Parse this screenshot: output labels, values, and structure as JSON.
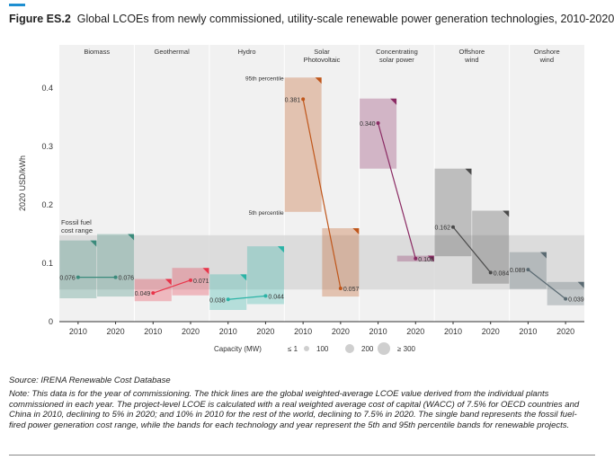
{
  "header": {
    "figure_label": "Figure ES.2",
    "title": "Global LCOEs from newly commissioned, utility-scale renewable power generation technologies, 2010-2020"
  },
  "footer": {
    "source": "Source: IRENA Renewable Cost Database",
    "note": "Note: This data is for the year of commissioning. The thick lines are the global weighted-average LCOE value derived from the individual plants commissioned in each year. The project-level LCOE is calculated with a real weighted average cost of capital (WACC) of 7.5% for OECD countries and China in 2010, declining to 5% in 2020; and 10% in 2010 for the rest of the world, declining to 7.5% in 2020. The single band represents the fossil fuel-fired power generation cost range, while the bands for each technology and year represent the 5th and 95th percentile bands for renewable projects."
  },
  "chart_data": {
    "type": "range_dot",
    "ylabel": "2020 USD/kWh",
    "ylim": [
      0,
      0.45
    ],
    "yticks": [
      0,
      0.1,
      0.2,
      0.3,
      0.4
    ],
    "ytick_labels": [
      "0",
      "0.1",
      "0.2",
      "0.3",
      "0.4"
    ],
    "years": [
      "2010",
      "2020"
    ],
    "fossil_band": {
      "label": "Fossil fuel cost range",
      "low": 0.055,
      "high": 0.148
    },
    "percentile_labels": {
      "p95": "95th percentile",
      "p5": "5th percentile"
    },
    "capacity_legend": {
      "title": "Capacity (MW)",
      "items": [
        "≤ 1",
        "100",
        "200",
        "≥ 300"
      ]
    },
    "technologies": [
      {
        "name": "Biomass",
        "color": "#3a8a7b",
        "bands": [
          {
            "low": 0.04,
            "high": 0.139
          },
          {
            "low": 0.043,
            "high": 0.15
          }
        ],
        "values": [
          0.076,
          0.076
        ],
        "labels": [
          "0.076",
          "0.076"
        ]
      },
      {
        "name": "Geothermal",
        "color": "#e8354a",
        "bands": [
          {
            "low": 0.035,
            "high": 0.073
          },
          {
            "low": 0.045,
            "high": 0.092
          }
        ],
        "values": [
          0.049,
          0.071
        ],
        "labels": [
          "0.049",
          "0.071"
        ]
      },
      {
        "name": "Hydro",
        "color": "#2bb3a6",
        "bands": [
          {
            "low": 0.02,
            "high": 0.081
          },
          {
            "low": 0.03,
            "high": 0.129
          }
        ],
        "values": [
          0.038,
          0.044
        ],
        "labels": [
          "0.038",
          "0.044"
        ]
      },
      {
        "name": "Solar Photovoltaic",
        "color": "#c0561a",
        "bands": [
          {
            "low": 0.188,
            "high": 0.418
          },
          {
            "low": 0.043,
            "high": 0.16
          }
        ],
        "values": [
          0.381,
          0.057
        ],
        "labels": [
          "0.381",
          "0.057"
        ]
      },
      {
        "name": "Concentrating solar power",
        "color": "#8a2a63",
        "bands": [
          {
            "low": 0.262,
            "high": 0.382
          },
          {
            "low": 0.103,
            "high": 0.113
          }
        ],
        "values": [
          0.34,
          0.108
        ],
        "labels": [
          "0.340",
          "0.108"
        ]
      },
      {
        "name": "Offshore wind",
        "color": "#4a4a4a",
        "bands": [
          {
            "low": 0.112,
            "high": 0.262
          },
          {
            "low": 0.065,
            "high": 0.19
          }
        ],
        "values": [
          0.162,
          0.084
        ],
        "labels": [
          "0.162",
          "0.084"
        ]
      },
      {
        "name": "Onshore wind",
        "color": "#5a6a72",
        "bands": [
          {
            "low": 0.056,
            "high": 0.119
          },
          {
            "low": 0.028,
            "high": 0.068
          }
        ],
        "values": [
          0.089,
          0.039
        ],
        "labels": [
          "0.089",
          "0.039"
        ]
      }
    ]
  }
}
